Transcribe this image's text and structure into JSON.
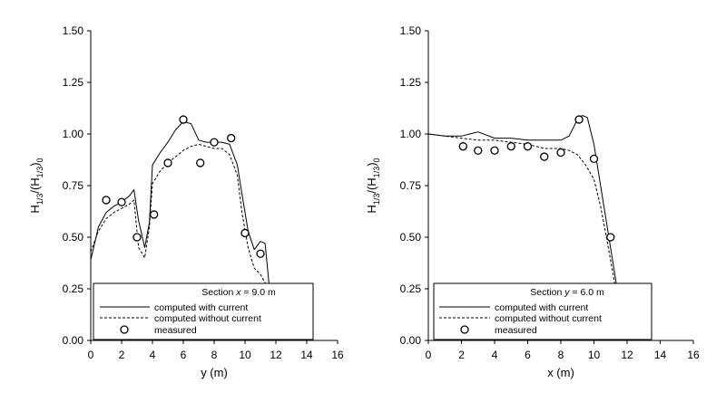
{
  "chart_data": [
    {
      "type": "line",
      "section_label": "Section x = 9.0 m",
      "xlabel": "y (m)",
      "ylabel": "H1/3/(H1/3)0",
      "xlim": [
        0,
        16
      ],
      "ylim": [
        0,
        1.5
      ],
      "xticks": [
        "0",
        "2",
        "4",
        "6",
        "8",
        "10",
        "12",
        "14",
        "16"
      ],
      "yticks": [
        "0.00",
        "0.25",
        "0.50",
        "0.75",
        "1.00",
        "1.25",
        "1.50"
      ],
      "legend_placement": "bottom",
      "series": [
        {
          "name": "computed with current",
          "style": "solid",
          "x": [
            0,
            0.5,
            1,
            1.5,
            2,
            2.5,
            2.8,
            3.1,
            3.5,
            3.8,
            4,
            4.5,
            5,
            5.5,
            6,
            6.5,
            7,
            7.5,
            8,
            8.5,
            9,
            9.5,
            9.8,
            10.2,
            10.6,
            11,
            11.3,
            11.6,
            12,
            12.5,
            13
          ],
          "y": [
            0.39,
            0.55,
            0.62,
            0.65,
            0.67,
            0.7,
            0.73,
            0.58,
            0.45,
            0.57,
            0.85,
            0.91,
            0.96,
            1.02,
            1.06,
            1.05,
            0.97,
            0.96,
            0.96,
            0.96,
            0.95,
            0.85,
            0.71,
            0.53,
            0.44,
            0.48,
            0.47,
            0.24,
            0.15,
            0.1,
            0.0
          ]
        },
        {
          "name": "computed without current",
          "style": "dashed",
          "x": [
            0,
            0.5,
            1,
            1.5,
            2,
            2.5,
            2.8,
            3.1,
            3.5,
            3.8,
            4,
            4.5,
            5,
            5.5,
            6,
            6.5,
            7,
            7.5,
            8,
            8.5,
            9,
            9.5,
            9.8,
            10.2,
            10.6,
            11,
            11.3,
            11.6,
            12,
            12.5,
            13
          ],
          "y": [
            0.43,
            0.53,
            0.59,
            0.62,
            0.64,
            0.66,
            0.68,
            0.45,
            0.4,
            0.55,
            0.76,
            0.82,
            0.86,
            0.89,
            0.92,
            0.94,
            0.95,
            0.94,
            0.93,
            0.93,
            0.9,
            0.8,
            0.62,
            0.45,
            0.35,
            0.32,
            0.28,
            0.2,
            0.1,
            0.04,
            0.0
          ]
        },
        {
          "name": "measured",
          "style": "marker",
          "x": [
            1.0,
            2.0,
            3.0,
            4.1,
            5.0,
            6.0,
            7.1,
            8.0,
            9.1,
            10.0,
            11.0
          ],
          "y": [
            0.68,
            0.67,
            0.5,
            0.61,
            0.86,
            1.07,
            0.86,
            0.96,
            0.98,
            0.52,
            0.42
          ]
        }
      ]
    },
    {
      "type": "line",
      "section_label": "Section y = 6.0 m",
      "xlabel": "x (m)",
      "ylabel": "H1/3/(H1/3)0",
      "xlim": [
        0,
        16
      ],
      "ylim": [
        0,
        1.5
      ],
      "xticks": [
        "0",
        "2",
        "4",
        "6",
        "8",
        "10",
        "12",
        "14",
        "16"
      ],
      "yticks": [
        "0.00",
        "0.25",
        "0.50",
        "0.75",
        "1.00",
        "1.25",
        "1.50"
      ],
      "legend_placement": "bottom",
      "series": [
        {
          "name": "computed with current",
          "style": "solid",
          "x": [
            0,
            1,
            2,
            2.5,
            3,
            4,
            5,
            6,
            7,
            8,
            8.5,
            9,
            9.3,
            9.6,
            10,
            10.4,
            10.8,
            11.2,
            11.6,
            12
          ],
          "y": [
            1.0,
            0.99,
            0.99,
            1.0,
            1.01,
            0.98,
            0.98,
            0.97,
            0.97,
            0.97,
            0.99,
            1.07,
            1.09,
            1.08,
            0.95,
            0.75,
            0.55,
            0.35,
            0.15,
            0.0
          ]
        },
        {
          "name": "computed without current",
          "style": "dashed",
          "x": [
            0,
            1,
            2,
            3,
            4,
            5,
            6,
            7,
            8,
            8.5,
            9,
            9.5,
            10,
            10.4,
            10.8,
            11.2,
            11.6,
            12
          ],
          "y": [
            1.0,
            0.99,
            0.98,
            0.97,
            0.97,
            0.96,
            0.95,
            0.93,
            0.93,
            0.92,
            0.9,
            0.85,
            0.78,
            0.65,
            0.48,
            0.3,
            0.12,
            0.0
          ]
        },
        {
          "name": "measured",
          "style": "marker",
          "x": [
            2.1,
            3.0,
            4.0,
            5.0,
            6.0,
            7.0,
            8.0,
            9.1,
            10.0,
            11.0
          ],
          "y": [
            0.94,
            0.92,
            0.92,
            0.94,
            0.94,
            0.89,
            0.91,
            1.07,
            0.88,
            0.5
          ]
        }
      ]
    }
  ]
}
